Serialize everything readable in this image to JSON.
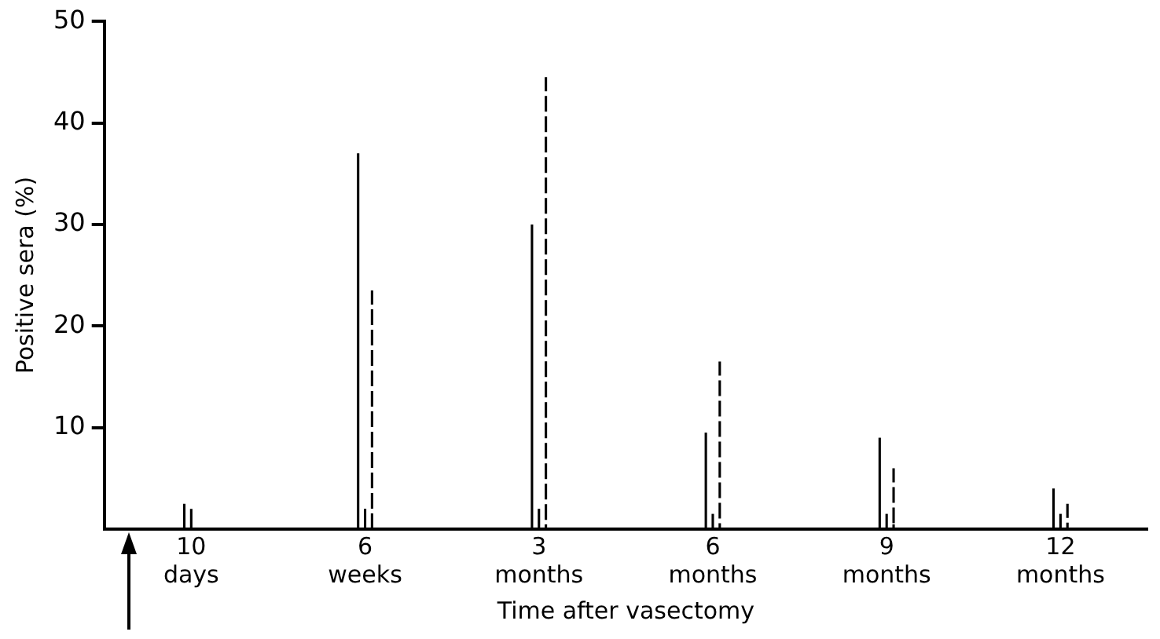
{
  "chart_data": {
    "type": "bar",
    "xlabel": "Time after vasectomy",
    "ylabel": "Positive sera (%)",
    "categories": [
      "10 days",
      "6 weeks",
      "3 months",
      "6 months",
      "9 months",
      "12 months"
    ],
    "series": [
      {
        "color": "#000000",
        "line_style": "solid",
        "values": [
          2.5,
          37,
          30,
          9.5,
          9,
          4
        ]
      },
      {
        "color": "#000000",
        "line_style": "solid",
        "values": [
          2,
          2,
          2,
          1.5,
          1.5,
          1.5
        ]
      },
      {
        "color": "#000000",
        "line_style": "dashed",
        "values": [
          null,
          23.5,
          44.5,
          16.5,
          6,
          2.5
        ]
      }
    ],
    "ylim": [
      0,
      50
    ],
    "yticks": [
      10,
      20,
      30,
      40,
      50
    ],
    "grid": false,
    "legend": false
  }
}
